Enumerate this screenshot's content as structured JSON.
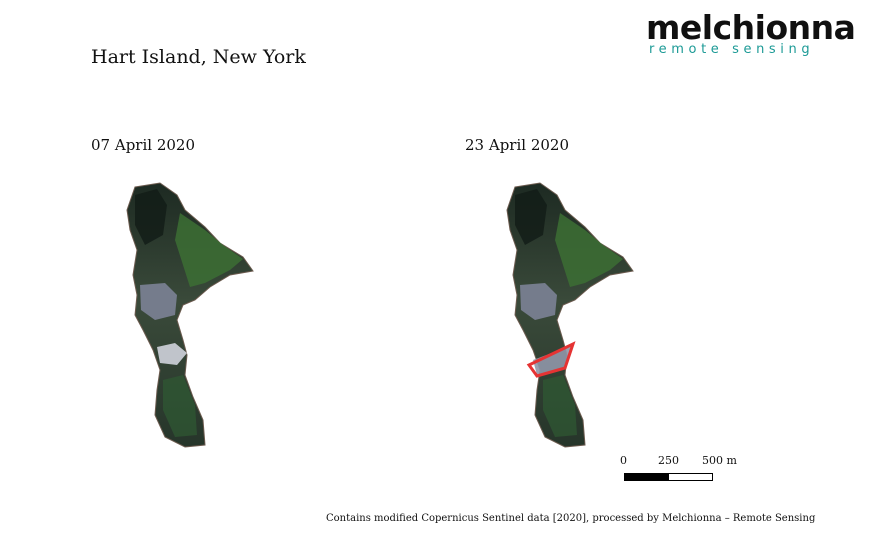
{
  "title": "Hart Island, New York",
  "logo": {
    "word": "melchionna",
    "subtitle": "remote sensing"
  },
  "panels": [
    {
      "date": "07 April 2020",
      "highlight": false
    },
    {
      "date": "23 April 2020",
      "highlight": true
    }
  ],
  "scale_bar": {
    "labels": [
      "0",
      "250",
      "500 m"
    ]
  },
  "credit": "Contains modified Copernicus Sentinel data [2020], processed by Melchionna – Remote Sensing",
  "colors": {
    "highlight": "#e53333",
    "logo_accent": "#1c9a96"
  }
}
